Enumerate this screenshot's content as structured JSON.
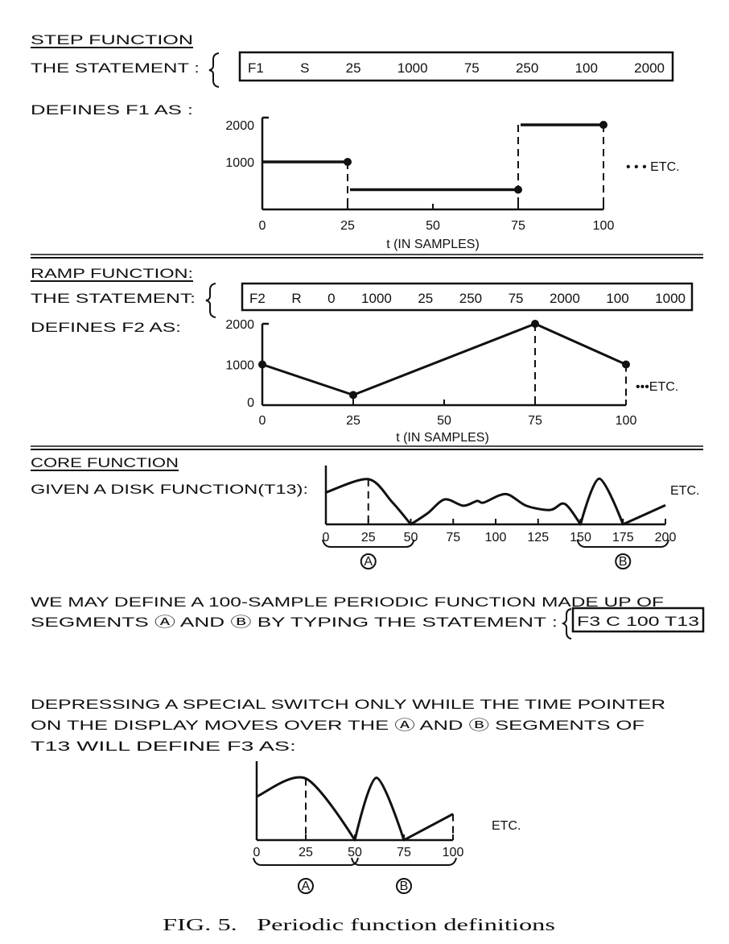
{
  "step": {
    "title": "STEP FUNCTION",
    "statement_label": "THE STATEMENT :",
    "statement_tokens": [
      "F1",
      "S",
      "25",
      "1000",
      "75",
      "250",
      "100",
      "2000"
    ],
    "defines_label": "DEFINES F1 AS :"
  },
  "ramp": {
    "title": "RAMP FUNCTION:",
    "statement_label": "THE STATEMENT:",
    "statement_tokens": [
      "F2",
      "R",
      "0",
      "1000",
      "25",
      "250",
      "75",
      "2000",
      "100",
      "1000"
    ],
    "defines_label": "DEFINES F2 AS:"
  },
  "core": {
    "title": "CORE FUNCTION",
    "given_label": "GIVEN A DISK FUNCTION(T13):",
    "paragraph_line1": "WE MAY DEFINE A 100-SAMPLE PERIODIC FUNCTION MADE UP OF",
    "paragraph_line2": "SEGMENTS Ⓐ AND Ⓑ BY TYPING THE STATEMENT :",
    "statement": "F3 C 100 T13",
    "depress_line1": "DEPRESSING A SPECIAL SWITCH ONLY WHILE THE TIME POINTER",
    "depress_line2": "ON THE DISPLAY MOVES OVER THE Ⓐ AND Ⓑ SEGMENTS OF",
    "depress_line3": "T13 WILL DEFINE F3 AS:"
  },
  "caption": "FIG. 5.   Periodic function definitions",
  "chart_data": [
    {
      "type": "line",
      "step": true,
      "x_ticks": [
        0,
        25,
        50,
        75,
        100
      ],
      "y_ticks": [
        1000,
        2000
      ],
      "xlabel": "t (IN SAMPLES)",
      "segments": [
        {
          "from": 0,
          "to": 25,
          "value": 1000
        },
        {
          "from": 25,
          "to": 75,
          "value": 250
        },
        {
          "from": 75,
          "to": 100,
          "value": 2000
        }
      ],
      "markers": [
        [
          25,
          1000
        ],
        [
          75,
          250
        ],
        [
          100,
          2000
        ]
      ],
      "dashed_at": [
        [
          25,
          1000
        ],
        [
          75,
          2000
        ],
        [
          100,
          2000
        ]
      ],
      "annotation": "• • • ETC."
    },
    {
      "type": "line",
      "x_ticks": [
        0,
        25,
        50,
        75,
        100
      ],
      "y_ticks": [
        0,
        1000,
        2000
      ],
      "xlabel": "t (IN SAMPLES)",
      "points": [
        [
          0,
          1000
        ],
        [
          25,
          250
        ],
        [
          75,
          2000
        ],
        [
          100,
          1000
        ]
      ],
      "markers": [
        [
          0,
          1000
        ],
        [
          25,
          250
        ],
        [
          75,
          2000
        ],
        [
          100,
          1000
        ]
      ],
      "dashed_at": [
        [
          25,
          250
        ],
        [
          75,
          2000
        ],
        [
          100,
          1000
        ]
      ],
      "annotation": "•••ETC."
    },
    {
      "type": "line",
      "x_ticks": [
        0,
        25,
        50,
        75,
        100,
        125,
        150,
        175,
        200
      ],
      "y_ticks": [],
      "points": [
        [
          0,
          60
        ],
        [
          25,
          85
        ],
        [
          39,
          42
        ],
        [
          50,
          0
        ],
        [
          60,
          21
        ],
        [
          70,
          47
        ],
        [
          81,
          35
        ],
        [
          89,
          44
        ],
        [
          93,
          41
        ],
        [
          106,
          57
        ],
        [
          118,
          35
        ],
        [
          132,
          27
        ],
        [
          139,
          39
        ],
        [
          143,
          32
        ],
        [
          150,
          0
        ],
        [
          161,
          86
        ],
        [
          175,
          0
        ],
        [
          200,
          36
        ]
      ],
      "dashed_at": [
        [
          25,
          85
        ]
      ],
      "segment_labels": [
        {
          "label": "A",
          "from": 0,
          "to": 50
        },
        {
          "label": "B",
          "from": 150,
          "to": 200
        }
      ],
      "annotation": "ETC."
    },
    {
      "type": "line",
      "x_ticks": [
        0,
        25,
        50,
        75,
        100
      ],
      "y_ticks": [],
      "points": [
        [
          0,
          60
        ],
        [
          25,
          85
        ],
        [
          50,
          0
        ],
        [
          61,
          86
        ],
        [
          75,
          0
        ],
        [
          100,
          36
        ]
      ],
      "dashed_at": [
        [
          25,
          85
        ],
        [
          100,
          36
        ]
      ],
      "segment_labels": [
        {
          "label": "A",
          "from": 0,
          "to": 50
        },
        {
          "label": "B",
          "from": 50,
          "to": 100
        }
      ],
      "annotation": "ETC."
    }
  ]
}
